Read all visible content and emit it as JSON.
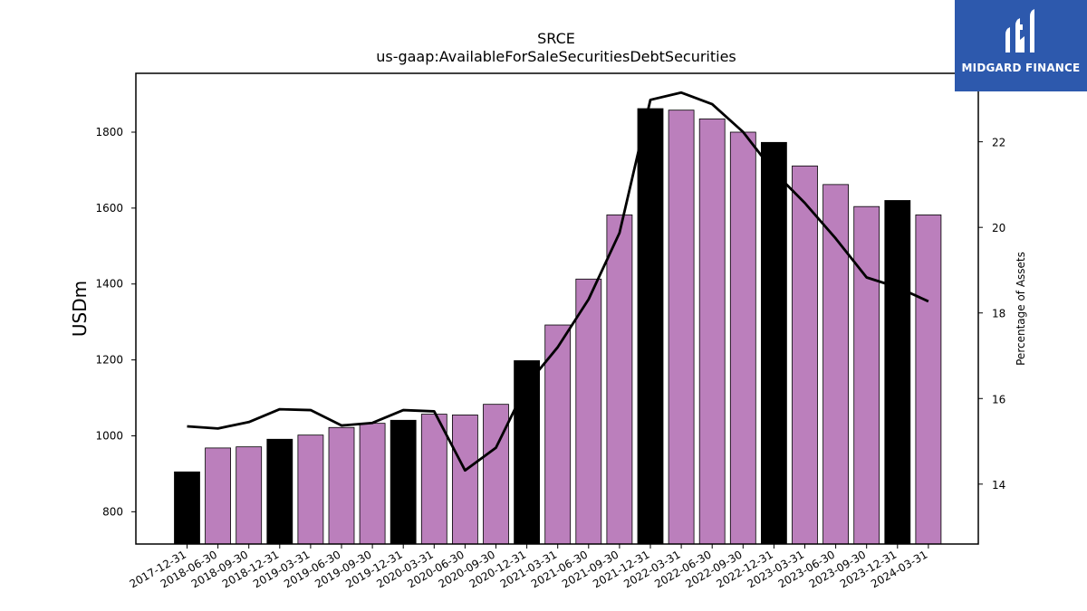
{
  "brand": {
    "name": "MIDGARD FINANCE",
    "icon": "midgard-logo-icon",
    "bg": "#2d59ad"
  },
  "chart_data": {
    "type": "bar",
    "title": "SRCE",
    "subtitle": "us-gaap:AvailableForSaleSecuritiesDebtSecurities",
    "ylabel": "USDm",
    "y2label": "Percentage of Assets",
    "ylim": [
      715,
      1955
    ],
    "y2lim": [
      12.6,
      23.6
    ],
    "yticks": [
      800,
      1000,
      1200,
      1400,
      1600,
      1800
    ],
    "y2ticks": [
      14,
      16,
      18,
      20,
      22
    ],
    "grid": false,
    "legend": "none",
    "bar_color": "#bb7fbc",
    "year_end_bar_color": "#000000",
    "line_color": "#000000",
    "categories": [
      "2017-12-31",
      "2018-06-30",
      "2018-09-30",
      "2018-12-31",
      "2019-03-31",
      "2019-06-30",
      "2019-09-30",
      "2019-12-31",
      "2020-03-31",
      "2020-06-30",
      "2020-09-30",
      "2020-12-31",
      "2021-03-31",
      "2021-06-30",
      "2021-09-30",
      "2021-12-31",
      "2022-03-31",
      "2022-06-30",
      "2022-09-30",
      "2022-12-31",
      "2023-03-31",
      "2023-06-30",
      "2023-09-30",
      "2023-12-31",
      "2024-03-31"
    ],
    "series": [
      {
        "type": "bar",
        "values": [
          905,
          968,
          971,
          991,
          1002,
          1022,
          1033,
          1041,
          1057,
          1055,
          1083,
          1198,
          1292,
          1413,
          1582,
          1862,
          1858,
          1835,
          1800,
          1773,
          1711,
          1662,
          1604,
          1620,
          1582
        ]
      },
      {
        "type": "line",
        "axis": "right",
        "values": [
          15.35,
          15.3,
          15.45,
          15.75,
          15.73,
          15.37,
          15.43,
          15.73,
          15.7,
          14.32,
          14.85,
          16.32,
          17.2,
          18.32,
          19.87,
          22.98,
          23.15,
          22.88,
          22.23,
          21.3,
          20.57,
          19.74,
          18.83,
          18.6,
          18.27
        ]
      }
    ]
  }
}
